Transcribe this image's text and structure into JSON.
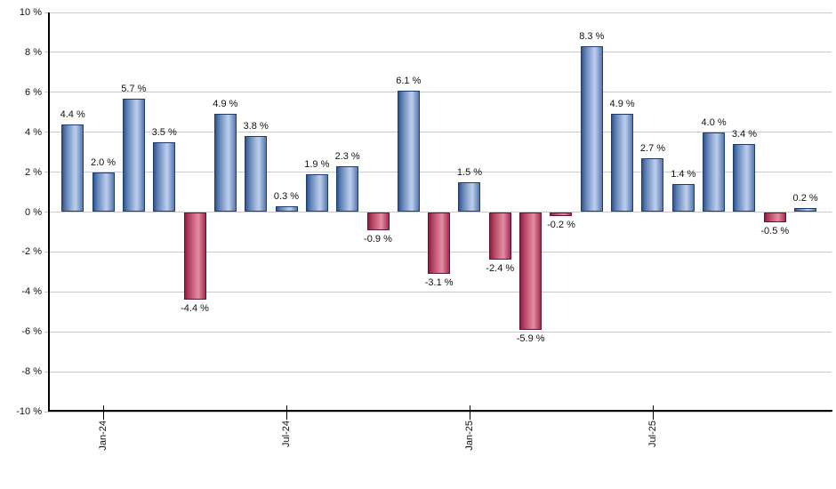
{
  "chart_data": {
    "type": "bar",
    "title": "",
    "xlabel": "",
    "ylabel": "",
    "ylim": [
      -10,
      10
    ],
    "y_tick_step": 2,
    "grid": true,
    "legend": false,
    "values": [
      4.4,
      2.0,
      5.7,
      3.5,
      -4.4,
      4.9,
      3.8,
      0.3,
      1.9,
      2.3,
      -0.9,
      6.1,
      -3.1,
      1.5,
      -2.4,
      -5.9,
      -0.2,
      8.3,
      4.9,
      2.7,
      1.4,
      4.0,
      3.4,
      -0.5,
      0.2
    ],
    "bar_labels": [
      "4.4 %",
      "2.0 %",
      "5.7 %",
      "3.5 %",
      "-4.4 %",
      "4.9 %",
      "3.8 %",
      "0.3 %",
      "1.9 %",
      "2.3 %",
      "-0.9 %",
      "6.1 %",
      "-3.1 %",
      "1.5 %",
      "-2.4 %",
      "-5.9 %",
      "-0.2 %",
      "8.3 %",
      "4.9 %",
      "2.7 %",
      "1.4 %",
      "4.0 %",
      "3.4 %",
      "-0.5 %",
      "0.2 %"
    ],
    "y_ticks": [
      "10 %",
      "8 %",
      "6 %",
      "4 %",
      "2 %",
      "0 %",
      "-2 %",
      "-4 %",
      "-6 %",
      "-8 %",
      "-10 %"
    ],
    "x_ticks": [
      {
        "bar_index": 1,
        "label": "Jan-24"
      },
      {
        "bar_index": 7,
        "label": "Jul-24"
      },
      {
        "bar_index": 13,
        "label": "Jan-25"
      },
      {
        "bar_index": 19,
        "label": "Jul-25"
      }
    ],
    "colors": {
      "positive_bar": "#7f9aca",
      "positive_border": "#1c3d6e",
      "negative_bar": "#bd5271",
      "negative_border": "#621530",
      "gridline": "#c9c9c9",
      "axis": "#000000",
      "label_text": "#111111"
    }
  }
}
